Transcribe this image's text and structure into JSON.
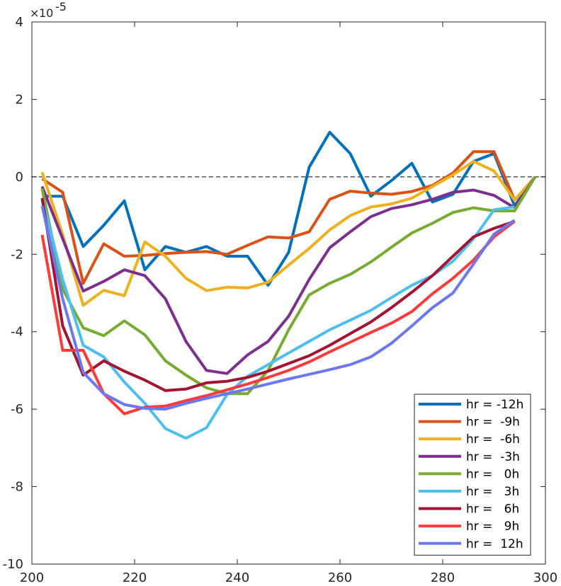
{
  "chart_data": {
    "type": "line",
    "title": "",
    "xlabel": "",
    "ylabel": "",
    "y_exponent_label": "10",
    "y_exponent_power": "-5",
    "y_exponent_prefix": "×",
    "xlim": [
      200,
      300
    ],
    "ylim": [
      -10,
      4
    ],
    "x_ticks": [
      200,
      220,
      240,
      260,
      280,
      300
    ],
    "y_ticks": [
      -10,
      -8,
      -6,
      -4,
      -2,
      0,
      2,
      4
    ],
    "x_tick_labels": [
      "200",
      "220",
      "240",
      "260",
      "280",
      "300"
    ],
    "y_tick_labels": [
      "-10",
      "-8",
      "-6",
      "-4",
      "-2",
      "0",
      "2",
      "4"
    ],
    "reference_line_y": 0,
    "grid": false,
    "legend_position": "bottom-right",
    "x": [
      202,
      206,
      210,
      214,
      218,
      222,
      226,
      230,
      234,
      238,
      242,
      246,
      250,
      254,
      258,
      262,
      266,
      270,
      274,
      278,
      282,
      286,
      290,
      294,
      298
    ],
    "series": [
      {
        "name": "hr = -12h",
        "color": "#0072BD",
        "values": [
          -0.5,
          -0.5,
          -1.8,
          -1.25,
          -0.62,
          -2.4,
          -1.8,
          -1.95,
          -1.8,
          -2.05,
          -2.05,
          -2.8,
          -1.95,
          0.25,
          1.15,
          0.6,
          -0.5,
          -0.1,
          0.35,
          -0.65,
          -0.45,
          0.4,
          0.6,
          -0.75,
          0.0
        ]
      },
      {
        "name": "hr =  -9h",
        "color": "#D95319",
        "values": [
          -0.05,
          -0.4,
          -2.75,
          -1.73,
          -2.05,
          -2.03,
          -1.98,
          -1.95,
          -1.93,
          -2.0,
          -1.77,
          -1.55,
          -1.58,
          -1.42,
          -0.58,
          -0.37,
          -0.42,
          -0.45,
          -0.38,
          -0.22,
          0.1,
          0.65,
          0.65,
          -0.6,
          0.0
        ]
      },
      {
        "name": "hr =  -6h",
        "color": "#EDB120",
        "values": [
          0.12,
          -1.5,
          -3.32,
          -2.93,
          -3.07,
          -1.68,
          -2.05,
          -2.62,
          -2.94,
          -2.85,
          -2.87,
          -2.72,
          -2.28,
          -1.85,
          -1.37,
          -1.0,
          -0.78,
          -0.7,
          -0.55,
          -0.25,
          0.05,
          0.4,
          0.15,
          -0.6,
          0.0
        ]
      },
      {
        "name": "hr =  -3h",
        "color": "#7E2F8E",
        "values": [
          -0.25,
          -1.6,
          -2.95,
          -2.7,
          -2.4,
          -2.55,
          -3.15,
          -4.25,
          -5.0,
          -5.08,
          -4.6,
          -4.25,
          -3.6,
          -2.65,
          -1.83,
          -1.42,
          -1.03,
          -0.82,
          -0.72,
          -0.58,
          -0.4,
          -0.34,
          -0.48,
          -0.8,
          0.0
        ]
      },
      {
        "name": "hr =   0h",
        "color": "#77AC30",
        "values": [
          -0.3,
          -2.9,
          -3.9,
          -4.1,
          -3.72,
          -4.08,
          -4.75,
          -5.12,
          -5.45,
          -5.6,
          -5.6,
          -5.0,
          -3.95,
          -3.05,
          -2.75,
          -2.52,
          -2.2,
          -1.82,
          -1.45,
          -1.2,
          -0.92,
          -0.8,
          -0.88,
          -0.88,
          0.0
        ]
      },
      {
        "name": "hr =   3h",
        "color": "#4DBEEE",
        "values": [
          -0.55,
          -2.65,
          -4.35,
          -4.65,
          -5.3,
          -5.85,
          -6.5,
          -6.75,
          -6.48,
          -5.62,
          -5.15,
          -4.85,
          -4.55,
          -4.25,
          -3.95,
          -3.7,
          -3.45,
          -3.12,
          -2.8,
          -2.55,
          -2.18,
          -1.6,
          -0.85,
          -0.78,
          null
        ]
      },
      {
        "name": "hr =   6h",
        "color": "#A2142F",
        "values": [
          -0.55,
          -3.85,
          -5.12,
          -4.75,
          -5.02,
          -5.25,
          -5.52,
          -5.48,
          -5.32,
          -5.28,
          -5.18,
          -5.02,
          -4.82,
          -4.62,
          -4.35,
          -4.05,
          -3.75,
          -3.38,
          -2.98,
          -2.55,
          -2.05,
          -1.55,
          -1.33,
          -1.15,
          null
        ]
      },
      {
        "name": "hr =   9h",
        "color": "#FF3A3A",
        "values": [
          -1.5,
          -4.48,
          -4.48,
          -5.6,
          -6.12,
          -5.95,
          -5.92,
          -5.78,
          -5.65,
          -5.5,
          -5.35,
          -5.18,
          -5.0,
          -4.78,
          -4.52,
          -4.27,
          -4.02,
          -3.78,
          -3.48,
          -3.02,
          -2.62,
          -2.15,
          -1.55,
          -1.15,
          null
        ]
      },
      {
        "name": "hr =  12h",
        "color": "#6B78F0",
        "values": [
          -0.75,
          -3.15,
          -5.05,
          -5.6,
          -5.88,
          -5.98,
          -6.0,
          -5.85,
          -5.72,
          -5.6,
          -5.48,
          -5.35,
          -5.22,
          -5.1,
          -4.98,
          -4.85,
          -4.65,
          -4.3,
          -3.85,
          -3.38,
          -3.0,
          -2.25,
          -1.48,
          -1.12,
          null
        ]
      }
    ]
  }
}
